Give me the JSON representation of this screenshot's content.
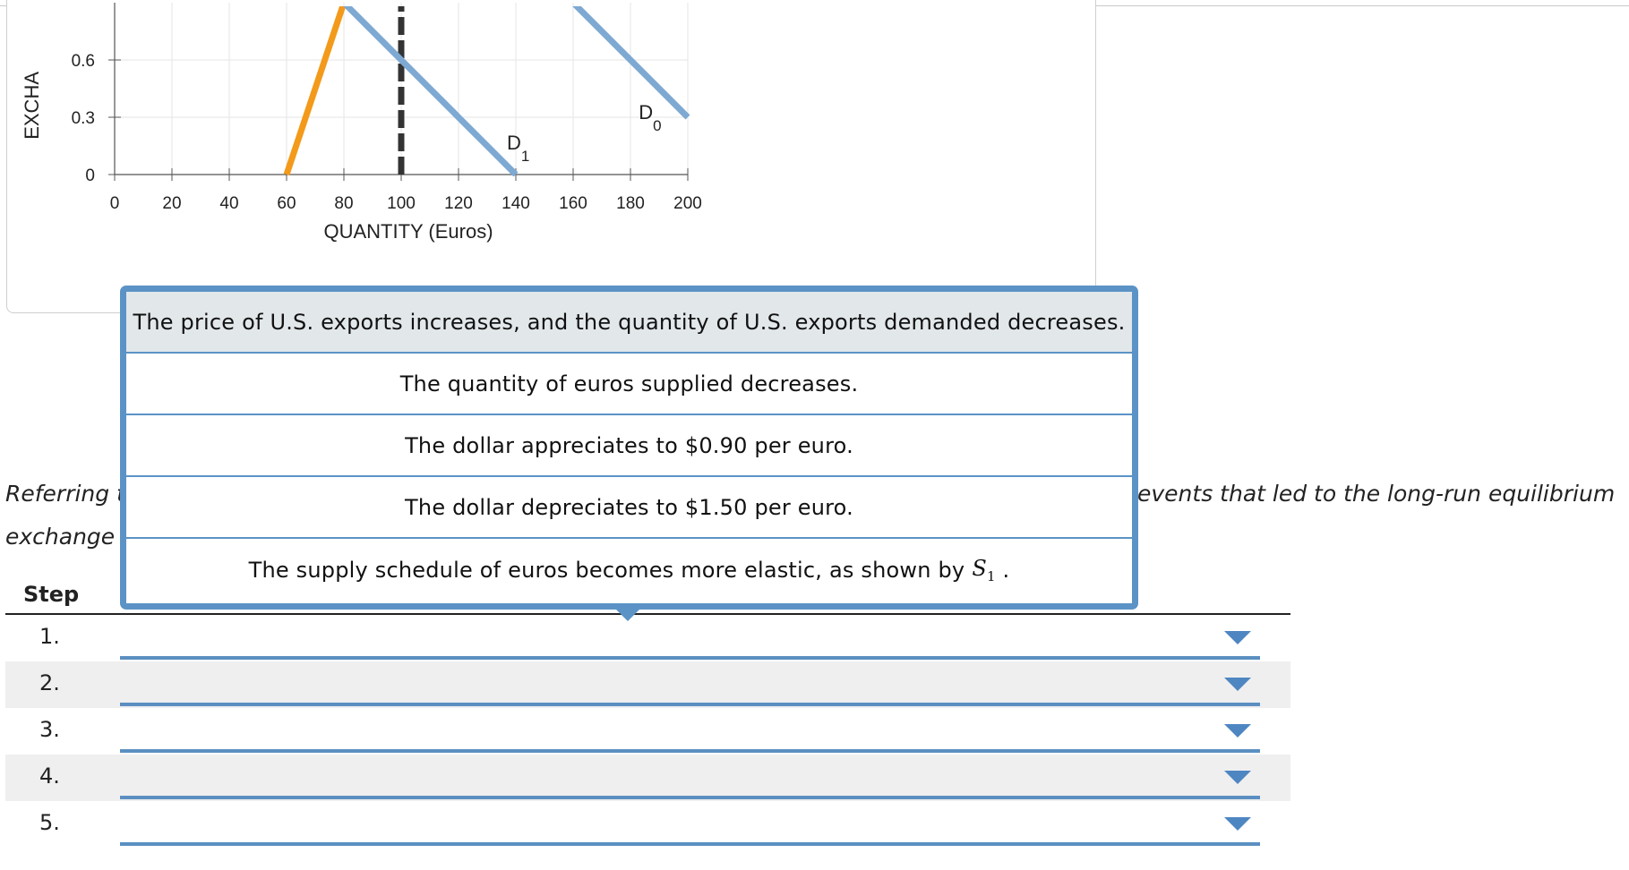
{
  "chart_data": {
    "type": "line",
    "xlabel": "QUANTITY (Euros)",
    "ylabel": "EXCHA",
    "x_ticks": [
      0,
      20,
      40,
      60,
      80,
      100,
      120,
      140,
      160,
      180,
      200
    ],
    "y_ticks": [
      0,
      0.3,
      0.6
    ],
    "y_tick_labels": [
      "0",
      "0.3",
      "0.6"
    ],
    "xlim": [
      0,
      200
    ],
    "ylim": [
      0,
      0.9
    ],
    "grid": true,
    "series": [
      {
        "name": "",
        "color": "#f39a1b",
        "style": "solid",
        "points": [
          [
            60,
            0
          ],
          [
            80,
            0.9
          ]
        ]
      },
      {
        "name": "",
        "color": "#333333",
        "style": "dashed",
        "points": [
          [
            100,
            0
          ],
          [
            100,
            0.9
          ]
        ]
      },
      {
        "name": "D1",
        "color": "#7ea9d2",
        "style": "solid",
        "points": [
          [
            80,
            0.9
          ],
          [
            140,
            0
          ]
        ]
      },
      {
        "name": "D0",
        "color": "#7ea9d2",
        "style": "solid",
        "points": [
          [
            160,
            0.9
          ],
          [
            200,
            0.3
          ]
        ]
      }
    ],
    "annotations": [
      {
        "base": "D",
        "sub": "1",
        "at": [
          140,
          0.14
        ]
      },
      {
        "base": "D",
        "sub": "0",
        "at": [
          186,
          0.3
        ]
      }
    ]
  },
  "instructions": {
    "line1_left": "Referring t",
    "line2_left": "exchange r",
    "line1_right": "events that led to the long-run equilibrium"
  },
  "steps": {
    "header": "Step",
    "rows": [
      {
        "number": "1.",
        "value": ""
      },
      {
        "number": "2.",
        "value": ""
      },
      {
        "number": "3.",
        "value": ""
      },
      {
        "number": "4.",
        "value": ""
      },
      {
        "number": "5.",
        "value": ""
      }
    ]
  },
  "popup": {
    "options": [
      "The price of U.S. exports increases, and the quantity of U.S. exports demanded decreases.",
      "The quantity of euros supplied decreases.",
      "The dollar appreciates to $0.90 per euro.",
      "The dollar depreciates to $1.50 per euro.",
      "The supply schedule of euros becomes more elastic, as shown by"
    ],
    "last_symbol": "S",
    "last_symbol_sub": "1",
    "last_suffix": " ."
  },
  "colors": {
    "accent": "#5b93c6",
    "supply_line": "#f39a1b",
    "demand_line": "#7ea9d2",
    "dashed_line": "#333333"
  }
}
